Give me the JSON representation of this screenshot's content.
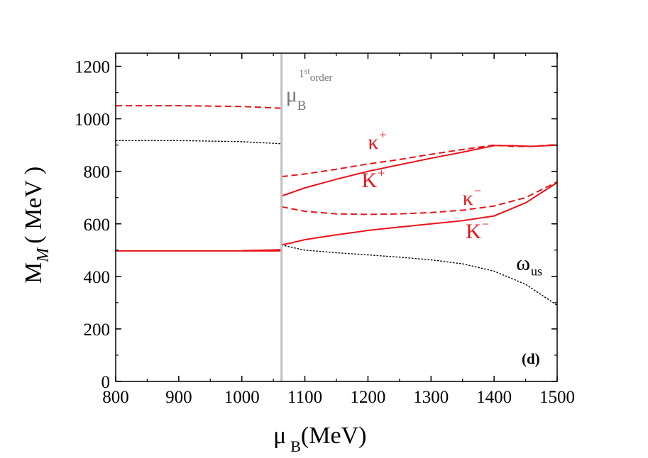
{
  "chart_data": {
    "type": "line",
    "xlabel": {
      "main": "μ",
      "sub": "B",
      "unit": "(MeV)"
    },
    "ylabel": {
      "main": "M",
      "sub": "M",
      "unit": "( MeV )"
    },
    "xlim": [
      800,
      1500
    ],
    "ylim": [
      0,
      1250
    ],
    "x_ticks": [
      800,
      900,
      1000,
      1100,
      1200,
      1300,
      1400,
      1500
    ],
    "y_ticks": [
      0,
      200,
      400,
      600,
      800,
      1000,
      1200
    ],
    "grid": false,
    "transition": {
      "x": 1063,
      "color": "#c0c0c0",
      "label_main": "μ",
      "label_sub": "B",
      "label_sup": "1",
      "label_sup2": "st",
      "label_tail": "order"
    },
    "panel_label": "(d)",
    "series": [
      {
        "color": "#e8141b",
        "dash": "solid",
        "points": [
          [
            800,
            497
          ],
          [
            900,
            497
          ],
          [
            1000,
            497
          ],
          [
            1063,
            497
          ]
        ]
      },
      {
        "color": "#e8141b",
        "dash": "solid",
        "points": [
          [
            1063,
            502
          ],
          [
            1040,
            500
          ],
          [
            1000,
            498
          ]
        ]
      },
      {
        "color": "#e8141b",
        "dash": "dashed",
        "points": [
          [
            800,
            1050
          ],
          [
            900,
            1050
          ],
          [
            1000,
            1047
          ],
          [
            1040,
            1043
          ],
          [
            1063,
            1040
          ]
        ]
      },
      {
        "color": "#000000",
        "dash": "dotted",
        "points": [
          [
            800,
            917
          ],
          [
            900,
            917
          ],
          [
            1000,
            913
          ],
          [
            1040,
            908
          ],
          [
            1063,
            905
          ]
        ]
      },
      {
        "color": "#e8141b",
        "dash": "solid",
        "points": [
          [
            1063,
            706
          ],
          [
            1100,
            737
          ],
          [
            1150,
            770
          ],
          [
            1200,
            800
          ],
          [
            1250,
            825
          ],
          [
            1300,
            850
          ],
          [
            1350,
            873
          ],
          [
            1400,
            898
          ],
          [
            1430,
            898
          ],
          [
            1460,
            895
          ],
          [
            1500,
            900
          ]
        ]
      },
      {
        "color": "#e8141b",
        "dash": "dashed",
        "points": [
          [
            1063,
            780
          ],
          [
            1100,
            790
          ],
          [
            1150,
            808
          ],
          [
            1200,
            828
          ],
          [
            1250,
            845
          ],
          [
            1300,
            865
          ],
          [
            1350,
            883
          ],
          [
            1400,
            900
          ],
          [
            1430,
            895
          ],
          [
            1460,
            895
          ],
          [
            1500,
            902
          ]
        ]
      },
      {
        "color": "#e8141b",
        "dash": "dashed",
        "points": [
          [
            1063,
            665
          ],
          [
            1100,
            648
          ],
          [
            1150,
            638
          ],
          [
            1200,
            636
          ],
          [
            1250,
            638
          ],
          [
            1300,
            643
          ],
          [
            1350,
            652
          ],
          [
            1400,
            668
          ],
          [
            1450,
            700
          ],
          [
            1500,
            760
          ]
        ]
      },
      {
        "color": "#e8141b",
        "dash": "solid",
        "points": [
          [
            1063,
            520
          ],
          [
            1080,
            528
          ],
          [
            1100,
            540
          ],
          [
            1150,
            558
          ],
          [
            1200,
            575
          ],
          [
            1250,
            588
          ],
          [
            1300,
            600
          ],
          [
            1350,
            612
          ],
          [
            1400,
            630
          ],
          [
            1450,
            680
          ],
          [
            1500,
            757
          ]
        ]
      },
      {
        "color": "#000000",
        "dash": "dotted",
        "points": [
          [
            1063,
            520
          ],
          [
            1080,
            510
          ],
          [
            1100,
            500
          ],
          [
            1150,
            490
          ],
          [
            1200,
            482
          ],
          [
            1250,
            473
          ],
          [
            1300,
            463
          ],
          [
            1350,
            448
          ],
          [
            1400,
            420
          ],
          [
            1450,
            370
          ],
          [
            1500,
            290
          ]
        ]
      }
    ],
    "annotations": [
      {
        "main": "κ",
        "sup": "+",
        "x": 1200,
        "y": 885,
        "color": "#e8141b"
      },
      {
        "main": "K",
        "sup": "+",
        "x": 1190,
        "y": 740,
        "color": "#e8141b"
      },
      {
        "main": "κ",
        "sup": "−",
        "x": 1350,
        "y": 672,
        "color": "#e8141b"
      },
      {
        "main": "K",
        "sup": "−",
        "x": 1355,
        "y": 545,
        "color": "#e8141b"
      },
      {
        "main": "ω",
        "sub": "us",
        "x": 1435,
        "y": 425,
        "color": "#000000"
      }
    ]
  }
}
